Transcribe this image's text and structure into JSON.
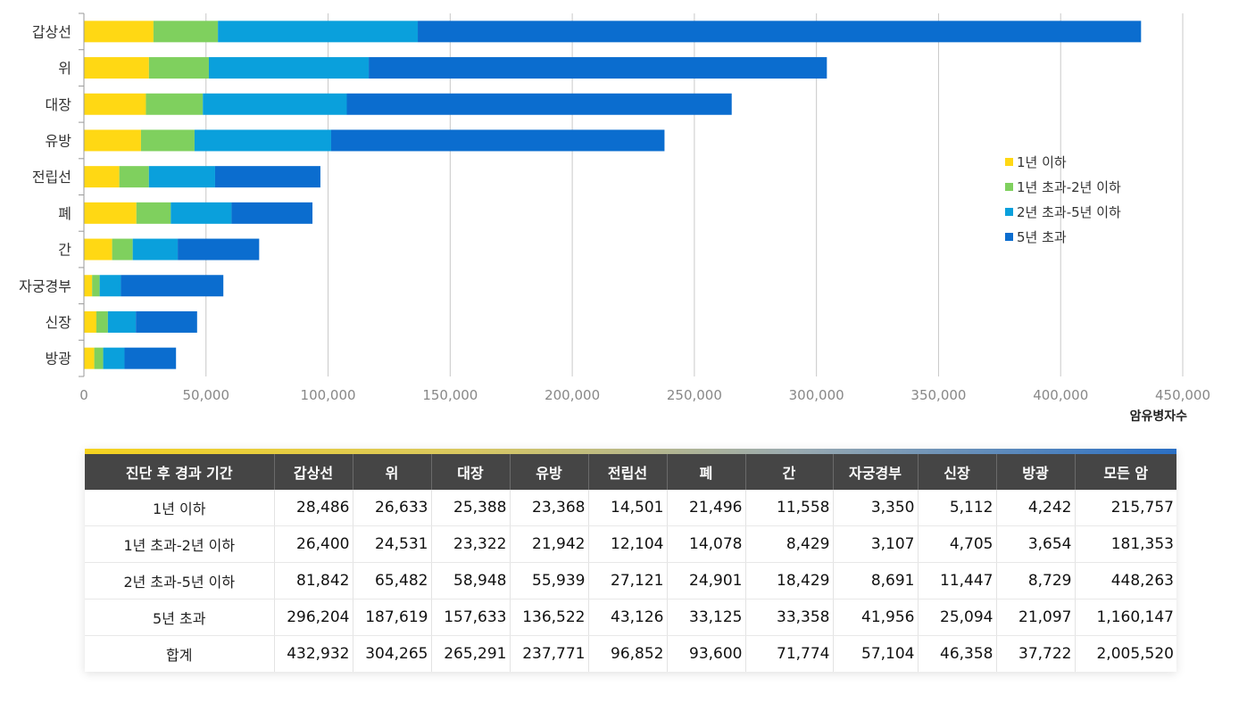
{
  "chart_data": {
    "type": "bar",
    "orientation": "horizontal",
    "stacked": true,
    "categories": [
      "갑상선",
      "위",
      "대장",
      "유방",
      "전립선",
      "폐",
      "간",
      "자궁경부",
      "신장",
      "방광"
    ],
    "series": [
      {
        "name": "1년 이하",
        "color": "#ffd814",
        "values": [
          28486,
          26633,
          25388,
          23368,
          14501,
          21496,
          11558,
          3350,
          5112,
          4242
        ]
      },
      {
        "name": "1년 초과-2년 이하",
        "color": "#7fd05e",
        "values": [
          26400,
          24531,
          23322,
          21942,
          12104,
          14078,
          8429,
          3107,
          4705,
          3654
        ]
      },
      {
        "name": "2년 초과-5년 이하",
        "color": "#0aa0dc",
        "values": [
          81842,
          65482,
          58948,
          55939,
          27121,
          24901,
          18429,
          8691,
          11447,
          8729
        ]
      },
      {
        "name": "5년 초과",
        "color": "#0b6dcf",
        "values": [
          296204,
          187619,
          157633,
          136522,
          43126,
          33125,
          33358,
          41956,
          25094,
          21097
        ]
      }
    ],
    "x_ticks": [
      "0",
      "50,000",
      "100,000",
      "150,000",
      "200,000",
      "250,000",
      "300,000",
      "350,000",
      "400,000",
      "450,000"
    ],
    "xlim": [
      0,
      450000
    ],
    "xlabel": "암유병자수",
    "grid": true,
    "legend_position": "right"
  },
  "table": {
    "headers": [
      "진단 후 경과 기간",
      "갑상선",
      "위",
      "대장",
      "유방",
      "전립선",
      "폐",
      "간",
      "자궁경부",
      "신장",
      "방광",
      "모든 암"
    ],
    "rows": [
      [
        "1년 이하",
        "28,486",
        "26,633",
        "25,388",
        "23,368",
        "14,501",
        "21,496",
        "11,558",
        "3,350",
        "5,112",
        "4,242",
        "215,757"
      ],
      [
        "1년 초과-2년 이하",
        "26,400",
        "24,531",
        "23,322",
        "21,942",
        "12,104",
        "14,078",
        "8,429",
        "3,107",
        "4,705",
        "3,654",
        "181,353"
      ],
      [
        "2년 초과-5년 이하",
        "81,842",
        "65,482",
        "58,948",
        "55,939",
        "27,121",
        "24,901",
        "18,429",
        "8,691",
        "11,447",
        "8,729",
        "448,263"
      ],
      [
        "5년 초과",
        "296,204",
        "187,619",
        "157,633",
        "136,522",
        "43,126",
        "33,125",
        "33,358",
        "41,956",
        "25,094",
        "21,097",
        "1,160,147"
      ],
      [
        "합계",
        "432,932",
        "304,265",
        "265,291",
        "237,771",
        "96,852",
        "93,600",
        "71,774",
        "57,104",
        "46,358",
        "37,722",
        "2,005,520"
      ]
    ]
  }
}
